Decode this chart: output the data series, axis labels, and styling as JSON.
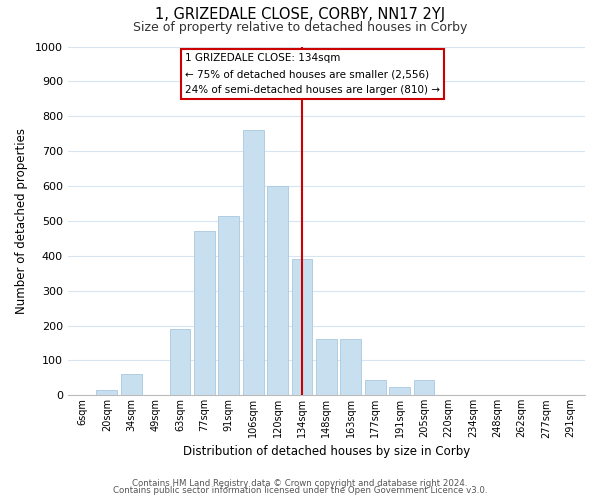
{
  "title1": "1, GRIZEDALE CLOSE, CORBY, NN17 2YJ",
  "title2": "Size of property relative to detached houses in Corby",
  "xlabel": "Distribution of detached houses by size in Corby",
  "ylabel": "Number of detached properties",
  "bar_labels": [
    "6sqm",
    "20sqm",
    "34sqm",
    "49sqm",
    "63sqm",
    "77sqm",
    "91sqm",
    "106sqm",
    "120sqm",
    "134sqm",
    "148sqm",
    "163sqm",
    "177sqm",
    "191sqm",
    "205sqm",
    "220sqm",
    "234sqm",
    "248sqm",
    "262sqm",
    "277sqm",
    "291sqm"
  ],
  "bar_heights": [
    0,
    15,
    60,
    0,
    190,
    470,
    515,
    760,
    600,
    390,
    160,
    160,
    45,
    25,
    45,
    0,
    0,
    0,
    0,
    0,
    0
  ],
  "bar_color": "#c8dff0",
  "bar_edgecolor": "#a8c8e0",
  "vline_x_index": 9,
  "vline_color": "#cc0000",
  "annotation_box_title": "1 GRIZEDALE CLOSE: 134sqm",
  "annotation_line1": "← 75% of detached houses are smaller (2,556)",
  "annotation_line2": "24% of semi-detached houses are larger (810) →",
  "annotation_box_color": "#ffffff",
  "annotation_box_edgecolor": "#cc0000",
  "ylim": [
    0,
    1000
  ],
  "yticks": [
    0,
    100,
    200,
    300,
    400,
    500,
    600,
    700,
    800,
    900,
    1000
  ],
  "footer1": "Contains HM Land Registry data © Crown copyright and database right 2024.",
  "footer2": "Contains public sector information licensed under the Open Government Licence v3.0.",
  "bg_color": "#ffffff",
  "grid_color": "#d8e4f0"
}
